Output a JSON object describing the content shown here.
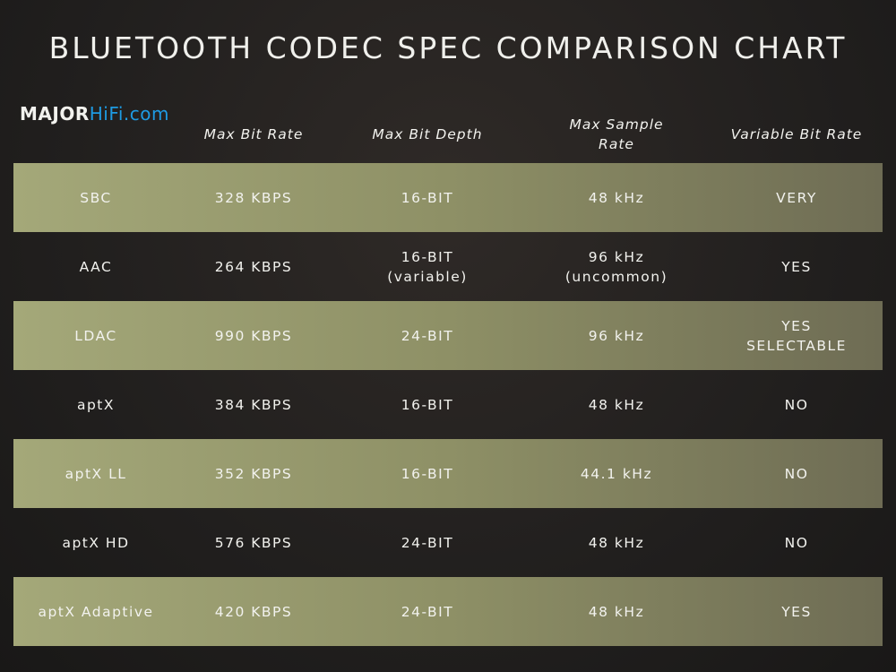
{
  "header": {
    "title": "BLUETOOTH CODEC SPEC COMPARISON CHART",
    "logo": {
      "brand": "MAJOR",
      "site": "HiFi.com"
    }
  },
  "table": {
    "columns": [
      "",
      "Max Bit Rate",
      "Max Bit Depth",
      "Max Sample Rate",
      "Variable Bit Rate"
    ],
    "rows": [
      [
        "SBC",
        "328 KBPS",
        "16-BIT",
        "48 kHz",
        "VERY"
      ],
      [
        "AAC",
        "264 KBPS",
        "16-BIT\n(variable)",
        "96 kHz\n(uncommon)",
        "YES"
      ],
      [
        "LDAC",
        "990 KBPS",
        "24-BIT",
        "96 kHz",
        "YES\nSELECTABLE"
      ],
      [
        "aptX",
        "384 KBPS",
        "16-BIT",
        "48 kHz",
        "NO"
      ],
      [
        "aptX LL",
        "352 KBPS",
        "16-BIT",
        "44.1 kHz",
        "NO"
      ],
      [
        "aptX HD",
        "576 KBPS",
        "24-BIT",
        "48 kHz",
        "NO"
      ],
      [
        "aptX Adaptive",
        "420 KBPS",
        "24-BIT",
        "48 kHz",
        "YES"
      ]
    ]
  }
}
